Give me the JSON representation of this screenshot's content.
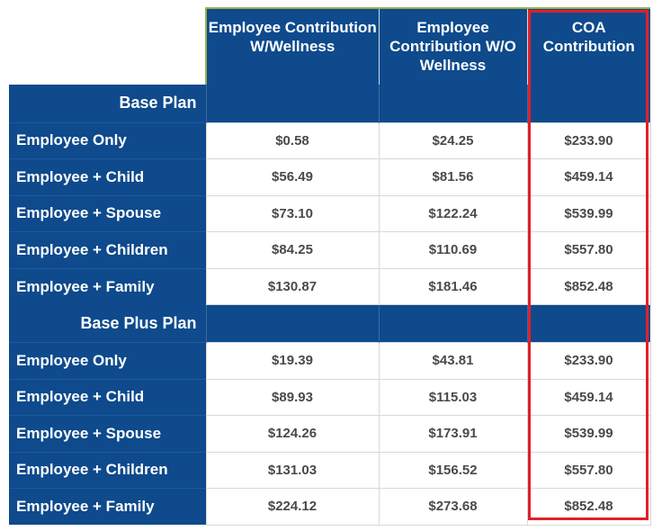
{
  "headers": {
    "col1": "Employee Contribution W/Wellness",
    "col2": "Employee Contribution W/O Wellness",
    "col3": "COA Contribution"
  },
  "sections": [
    {
      "title": "Base Plan",
      "rows": [
        {
          "label": "Employee Only",
          "v1": "$0.58",
          "v2": "$24.25",
          "v3": "$233.90"
        },
        {
          "label": "Employee + Child",
          "v1": "$56.49",
          "v2": "$81.56",
          "v3": "$459.14"
        },
        {
          "label": "Employee + Spouse",
          "v1": "$73.10",
          "v2": "$122.24",
          "v3": "$539.99"
        },
        {
          "label": "Employee + Children",
          "v1": "$84.25",
          "v2": "$110.69",
          "v3": "$557.80"
        },
        {
          "label": "Employee + Family",
          "v1": "$130.87",
          "v2": "$181.46",
          "v3": "$852.48"
        }
      ]
    },
    {
      "title": "Base Plus Plan",
      "rows": [
        {
          "label": "Employee Only",
          "v1": "$19.39",
          "v2": "$43.81",
          "v3": "$233.90"
        },
        {
          "label": "Employee + Child",
          "v1": "$89.93",
          "v2": "$115.03",
          "v3": "$459.14"
        },
        {
          "label": "Employee + Spouse",
          "v1": "$124.26",
          "v2": "$173.91",
          "v3": "$539.99"
        },
        {
          "label": "Employee + Children",
          "v1": "$131.03",
          "v2": "$156.52",
          "v3": "$557.80"
        },
        {
          "label": "Employee + Family",
          "v1": "$224.12",
          "v2": "$273.68",
          "v3": "$852.48"
        }
      ]
    }
  ],
  "colors": {
    "header_blue": "#0e4a8c",
    "highlight_red": "#e0202a"
  }
}
